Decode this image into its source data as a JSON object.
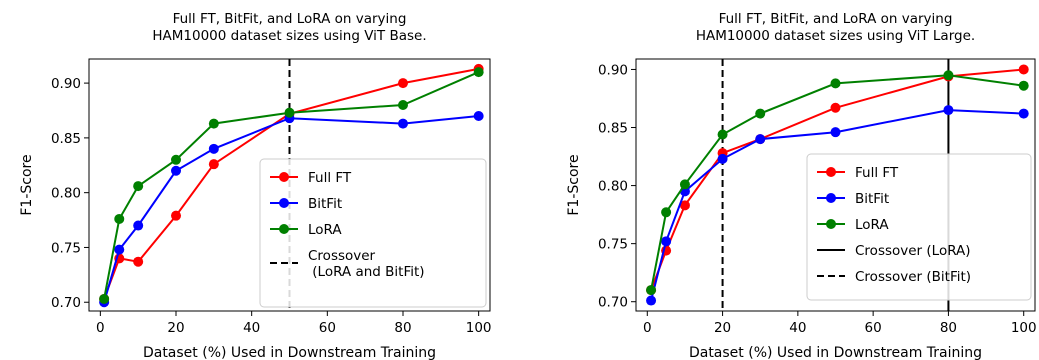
{
  "chart_data": [
    {
      "type": "line",
      "title_lines": [
        "Full FT, BitFit, and LoRA on varying",
        "HAM10000 dataset sizes using ViT Base."
      ],
      "xlabel": "Dataset (%) Used in Downstream Training",
      "ylabel": "F1-Score",
      "xlim": [
        -3,
        103
      ],
      "ylim": [
        0.692,
        0.922
      ],
      "xticks": [
        0,
        20,
        40,
        60,
        80,
        100
      ],
      "yticks": [
        0.7,
        0.75,
        0.8,
        0.85,
        0.9
      ],
      "ytick_labels": [
        "0.70",
        "0.75",
        "0.80",
        "0.85",
        "0.90"
      ],
      "x": [
        1,
        5,
        10,
        20,
        30,
        50,
        80,
        100
      ],
      "series": [
        {
          "name": "Full FT",
          "color": "#ff0000",
          "values": [
            0.703,
            0.74,
            0.737,
            0.779,
            0.826,
            0.872,
            0.9,
            0.913
          ]
        },
        {
          "name": "BitFit",
          "color": "#0000ff",
          "values": [
            0.7,
            0.748,
            0.77,
            0.82,
            0.84,
            0.868,
            0.863,
            0.87
          ]
        },
        {
          "name": "LoRA",
          "color": "#008000",
          "values": [
            0.703,
            0.776,
            0.806,
            0.83,
            0.863,
            0.873,
            0.88,
            0.91
          ]
        }
      ],
      "vlines": [
        {
          "x": 50,
          "style": "dashed",
          "name_lines": [
            "Crossover",
            " (LoRA and BitFit)"
          ]
        }
      ],
      "legend_position": "lower-right"
    },
    {
      "type": "line",
      "title_lines": [
        "Full FT, BitFit, and LoRA on varying",
        "HAM10000 dataset sizes using ViT Large."
      ],
      "xlabel": "Dataset (%) Used in Downstream Training",
      "ylabel": "F1-Score",
      "xlim": [
        -3,
        103
      ],
      "ylim": [
        0.692,
        0.909
      ],
      "xticks": [
        0,
        20,
        40,
        60,
        80,
        100
      ],
      "yticks": [
        0.7,
        0.75,
        0.8,
        0.85,
        0.9
      ],
      "ytick_labels": [
        "0.70",
        "0.75",
        "0.80",
        "0.85",
        "0.90"
      ],
      "x": [
        1,
        5,
        10,
        20,
        30,
        50,
        80,
        100
      ],
      "series": [
        {
          "name": "Full FT",
          "color": "#ff0000",
          "values": [
            0.71,
            0.744,
            0.783,
            0.828,
            0.84,
            0.867,
            0.894,
            0.9
          ]
        },
        {
          "name": "BitFit",
          "color": "#0000ff",
          "values": [
            0.701,
            0.752,
            0.795,
            0.823,
            0.84,
            0.846,
            0.865,
            0.862
          ]
        },
        {
          "name": "LoRA",
          "color": "#008000",
          "values": [
            0.71,
            0.777,
            0.801,
            0.844,
            0.862,
            0.888,
            0.895,
            0.886
          ]
        }
      ],
      "vlines": [
        {
          "x": 80,
          "style": "solid",
          "name_lines": [
            "Crossover (LoRA)"
          ]
        },
        {
          "x": 20,
          "style": "dashed",
          "name_lines": [
            "Crossover (BitFit)"
          ]
        }
      ],
      "legend_position": "lower-right"
    }
  ]
}
